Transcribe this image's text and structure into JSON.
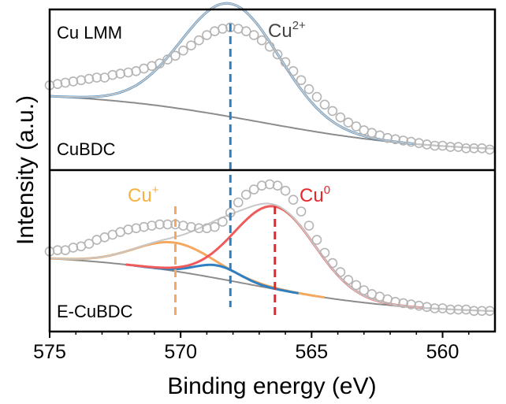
{
  "chart_data": {
    "type": "line",
    "xlabel": "Binding energy (eV)",
    "ylabel": "Intensity (a.u.)",
    "xlim": [
      575,
      558
    ],
    "x_reversed": true,
    "xticks": [
      575,
      570,
      565,
      560
    ],
    "grid": false,
    "colors": {
      "data": "#b4b4b4",
      "envelope": "#c7c7c7",
      "background": "#8c8c8c",
      "cu2": "#2f7fc1",
      "cu1": "#f4a860",
      "cu0": "#ef5b5b",
      "cu1_label": "#f5b240",
      "cu0_label": "#e8262a",
      "cu2_label": "#444444"
    },
    "panels": [
      {
        "sample": "CuBDC",
        "region": "Cu LMM",
        "peaks": [
          {
            "label_main": "Cu",
            "label_sup": "2+",
            "position": 568.1,
            "fwhm": 4.4,
            "height": 0.88,
            "color_key": "cu2"
          }
        ],
        "background": {
          "start": 0.61,
          "end": 0.14,
          "center": 567.0,
          "width": 3.2
        },
        "data_points": [
          [
            575.0,
            0.66
          ],
          [
            574.7,
            0.67
          ],
          [
            574.4,
            0.68
          ],
          [
            574.1,
            0.69
          ],
          [
            573.8,
            0.7
          ],
          [
            573.5,
            0.71
          ],
          [
            573.2,
            0.72
          ],
          [
            572.9,
            0.72
          ],
          [
            572.6,
            0.74
          ],
          [
            572.3,
            0.75
          ],
          [
            572.0,
            0.76
          ],
          [
            571.7,
            0.77
          ],
          [
            571.4,
            0.79
          ],
          [
            571.1,
            0.81
          ],
          [
            570.8,
            0.83
          ],
          [
            570.5,
            0.86
          ],
          [
            570.2,
            0.89
          ],
          [
            569.9,
            0.93
          ],
          [
            569.6,
            0.97
          ],
          [
            569.3,
            1.01
          ],
          [
            569.0,
            1.05
          ],
          [
            568.7,
            1.08
          ],
          [
            568.4,
            1.1
          ],
          [
            568.1,
            1.11
          ],
          [
            567.8,
            1.1
          ],
          [
            567.5,
            1.08
          ],
          [
            567.2,
            1.05
          ],
          [
            566.9,
            1.01
          ],
          [
            566.6,
            0.96
          ],
          [
            566.3,
            0.9
          ],
          [
            566.0,
            0.84
          ],
          [
            565.7,
            0.77
          ],
          [
            565.4,
            0.7
          ],
          [
            565.1,
            0.63
          ],
          [
            564.8,
            0.57
          ],
          [
            564.5,
            0.51
          ],
          [
            564.2,
            0.46
          ],
          [
            563.9,
            0.41
          ],
          [
            563.6,
            0.37
          ],
          [
            563.3,
            0.34
          ],
          [
            563.0,
            0.31
          ],
          [
            562.7,
            0.29
          ],
          [
            562.4,
            0.27
          ],
          [
            562.1,
            0.25
          ],
          [
            561.8,
            0.24
          ],
          [
            561.5,
            0.23
          ],
          [
            561.2,
            0.22
          ],
          [
            560.9,
            0.21
          ],
          [
            560.6,
            0.2
          ],
          [
            560.3,
            0.19
          ],
          [
            560.0,
            0.19
          ],
          [
            559.7,
            0.18
          ],
          [
            559.4,
            0.18
          ],
          [
            559.1,
            0.17
          ],
          [
            558.8,
            0.17
          ],
          [
            558.5,
            0.17
          ],
          [
            558.2,
            0.16
          ]
        ]
      },
      {
        "sample": "E-CuBDC",
        "region": "",
        "peaks": [
          {
            "label_main": "Cu",
            "label_sup": "+",
            "position": 570.2,
            "fwhm": 3.6,
            "height": 0.22,
            "color_key": "cu1"
          },
          {
            "label_main": "",
            "label_sup": "",
            "position": 568.6,
            "fwhm": 2.0,
            "height": 0.1,
            "color_key": "cu2"
          },
          {
            "label_main": "Cu",
            "label_sup": "0",
            "position": 566.4,
            "fwhm": 3.6,
            "height": 0.64,
            "color_key": "cu0"
          }
        ],
        "background": {
          "start": 0.6,
          "end": 0.14,
          "center": 567.5,
          "width": 3.0
        },
        "data_points": [
          [
            575.0,
            0.62
          ],
          [
            574.7,
            0.63
          ],
          [
            574.4,
            0.63
          ],
          [
            574.1,
            0.65
          ],
          [
            573.8,
            0.66
          ],
          [
            573.5,
            0.68
          ],
          [
            573.2,
            0.71
          ],
          [
            572.9,
            0.73
          ],
          [
            572.6,
            0.75
          ],
          [
            572.3,
            0.77
          ],
          [
            572.0,
            0.79
          ],
          [
            571.7,
            0.8
          ],
          [
            571.4,
            0.81
          ],
          [
            571.1,
            0.82
          ],
          [
            570.8,
            0.83
          ],
          [
            570.5,
            0.83
          ],
          [
            570.2,
            0.83
          ],
          [
            569.9,
            0.82
          ],
          [
            569.6,
            0.81
          ],
          [
            569.3,
            0.8
          ],
          [
            569.0,
            0.8
          ],
          [
            568.7,
            0.81
          ],
          [
            568.4,
            0.85
          ],
          [
            568.1,
            0.92
          ],
          [
            567.8,
            1.0
          ],
          [
            567.5,
            1.06
          ],
          [
            567.2,
            1.1
          ],
          [
            566.9,
            1.13
          ],
          [
            566.6,
            1.14
          ],
          [
            566.3,
            1.13
          ],
          [
            566.0,
            1.09
          ],
          [
            565.7,
            1.02
          ],
          [
            565.4,
            0.93
          ],
          [
            565.1,
            0.82
          ],
          [
            564.8,
            0.71
          ],
          [
            564.5,
            0.61
          ],
          [
            564.2,
            0.53
          ],
          [
            563.9,
            0.46
          ],
          [
            563.6,
            0.4
          ],
          [
            563.3,
            0.36
          ],
          [
            563.0,
            0.32
          ],
          [
            562.7,
            0.29
          ],
          [
            562.4,
            0.27
          ],
          [
            562.1,
            0.25
          ],
          [
            561.8,
            0.23
          ],
          [
            561.5,
            0.22
          ],
          [
            561.2,
            0.21
          ],
          [
            560.9,
            0.2
          ],
          [
            560.6,
            0.19
          ],
          [
            560.3,
            0.18
          ],
          [
            560.0,
            0.18
          ],
          [
            559.7,
            0.17
          ],
          [
            559.4,
            0.17
          ],
          [
            559.1,
            0.17
          ],
          [
            558.8,
            0.16
          ],
          [
            558.5,
            0.16
          ],
          [
            558.2,
            0.16
          ]
        ]
      }
    ]
  }
}
